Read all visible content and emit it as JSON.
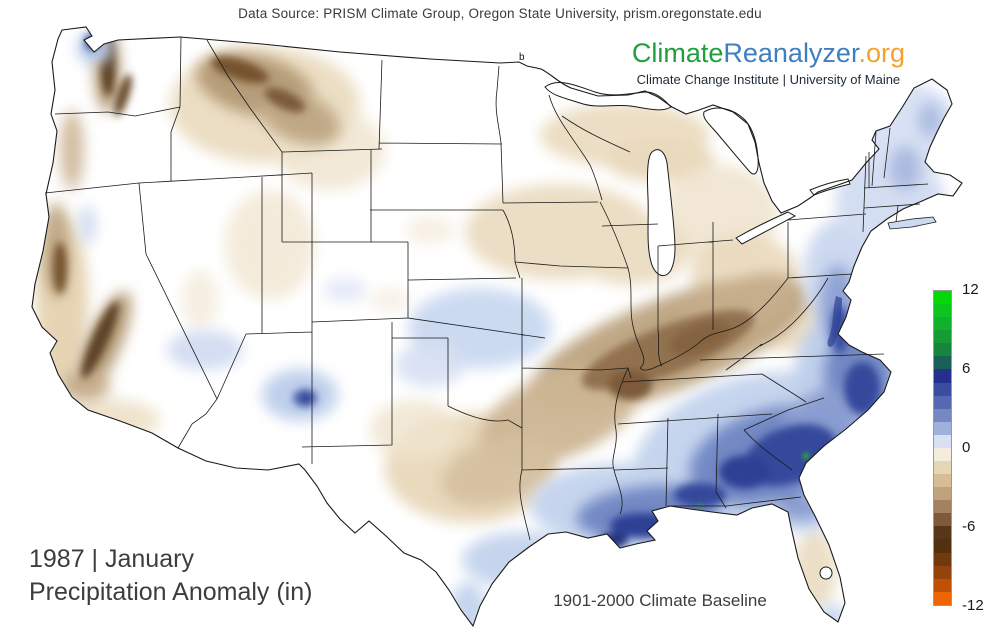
{
  "header": {
    "data_source": "Data Source: PRISM Climate Group, Oregon State University, prism.oregonstate.edu"
  },
  "logo": {
    "part_climate": "Climate",
    "part_reanalyzer": "Reanalyzer",
    "part_org": ".org",
    "subtitle": "Climate Change Institute | University of Maine",
    "color_climate": "#1fa03c",
    "color_reanalyzer": "#3e7fc1",
    "color_org": "#f6a12d"
  },
  "map": {
    "stray_label": "b",
    "kind": "US precipitation anomaly choropleth, PRISM data",
    "regions": [
      {
        "name": "Washington Cascades / Olympics",
        "anomaly": "dry",
        "tone": "dark brown streaks"
      },
      {
        "name": "Sierra Nevada and California coast ranges",
        "anomaly": "dry",
        "tone": "dark brown"
      },
      {
        "name": "Northern Rockies (Idaho / western Montana)",
        "anomaly": "dry",
        "tone": "brown"
      },
      {
        "name": "Upper Midwest (Iowa, Wisconsin, Michigan)",
        "anomaly": "slightly dry",
        "tone": "light tan"
      },
      {
        "name": "Ohio Valley through Tennessee / Kentucky / Arkansas band",
        "anomaly": "dry",
        "tone": "dark brown band"
      },
      {
        "name": "Central and east Texas",
        "anomaly": "slightly dry",
        "tone": "tan"
      },
      {
        "name": "Gulf Coast (Louisiana to Florida panhandle)",
        "anomaly": "wet",
        "tone": "dark blue"
      },
      {
        "name": "Southeast coastal plain (Georgia / Carolinas)",
        "anomaly": "wet",
        "tone": "dark blue with green specks"
      },
      {
        "name": "Mid-Atlantic and New England coast",
        "anomaly": "wet",
        "tone": "blue"
      },
      {
        "name": "Southern Plains (Kansas / Oklahoma)",
        "anomaly": "slightly wet",
        "tone": "light blue"
      },
      {
        "name": "New Mexico / Arizona patches",
        "anomaly": "slightly wet",
        "tone": "light blue with dark spot"
      },
      {
        "name": "Central Florida",
        "anomaly": "slightly dry",
        "tone": "light tan"
      }
    ]
  },
  "colorbar": {
    "unit": "in",
    "min": -12,
    "max": 12,
    "ticks": [
      {
        "value": 12,
        "label": "12"
      },
      {
        "value": 6,
        "label": "6"
      },
      {
        "value": 0,
        "label": "0"
      },
      {
        "value": -6,
        "label": "-6"
      },
      {
        "value": -12,
        "label": "-12"
      }
    ],
    "segments": [
      "#04d908",
      "#0cc51d",
      "#12b12b",
      "#169c35",
      "#18853f",
      "#1b6058",
      "#242f8e",
      "#3a4da1",
      "#5668b1",
      "#7588c2",
      "#9fb0da",
      "#d8e0f2",
      "#f4ecdc",
      "#e7d6b6",
      "#d6bd98",
      "#c0a37d",
      "#a48160",
      "#7e5a3a",
      "#57371c",
      "#55300f",
      "#703a0e",
      "#94430c",
      "#bf5107",
      "#ef6503"
    ]
  },
  "footer": {
    "date_line": "1987 | January",
    "title_line": "Precipitation Anomaly (in)",
    "baseline": "1901-2000 Climate Baseline"
  }
}
